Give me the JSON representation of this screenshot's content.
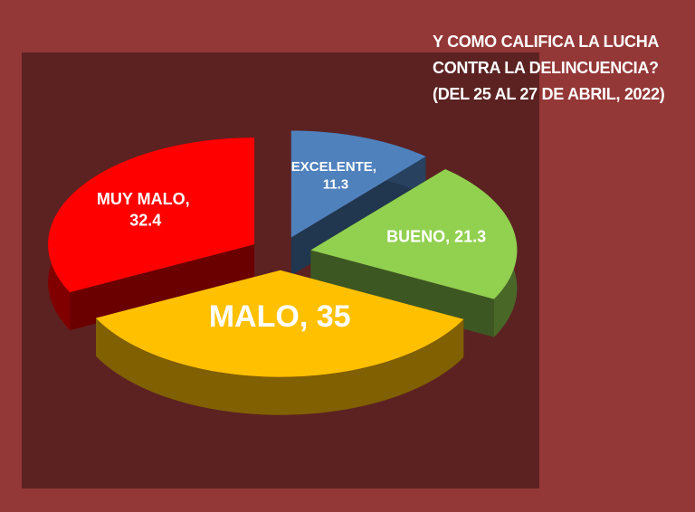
{
  "chart_data": {
    "type": "pie3d",
    "title": "Y COMO CALIFICA LA LUCHA CONTRA LA DELINCUENCIA? (DEL 25 AL 27 DE ABRIL, 2022)",
    "values": [
      11.3,
      21.3,
      35,
      32.4
    ],
    "value_labels": [
      "EXCELENTE, 11.3",
      "BUENO, 21.3",
      "MALO, 35",
      "MUY MALO, 32.4"
    ],
    "colors": [
      "#4f81bd",
      "#92d050",
      "#ffc000",
      "#ff0000"
    ]
  }
}
